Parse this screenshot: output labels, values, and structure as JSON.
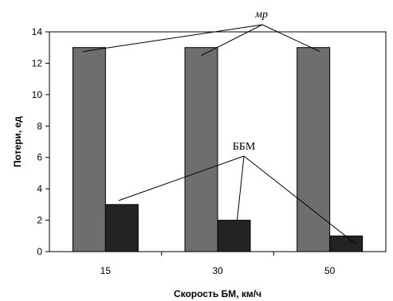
{
  "chart_data": {
    "type": "bar",
    "categories": [
      "15",
      "30",
      "50"
    ],
    "series": [
      {
        "values": [
          13,
          13,
          13
        ],
        "color": "#6e6e6e"
      },
      {
        "values": [
          3,
          2,
          1
        ],
        "color": "#232323"
      }
    ],
    "xlabel": "Скорость БМ, км/ч",
    "ylabel": "Потери, ед",
    "ylim": [
      0,
      14
    ],
    "yticks": [
      0,
      2,
      4,
      6,
      8,
      10,
      12,
      14
    ],
    "grid": false,
    "annotations": [
      {
        "text": "мр",
        "series_index": 0,
        "italic": true
      },
      {
        "text": "ББМ",
        "series_index": 1,
        "italic": false
      }
    ]
  }
}
